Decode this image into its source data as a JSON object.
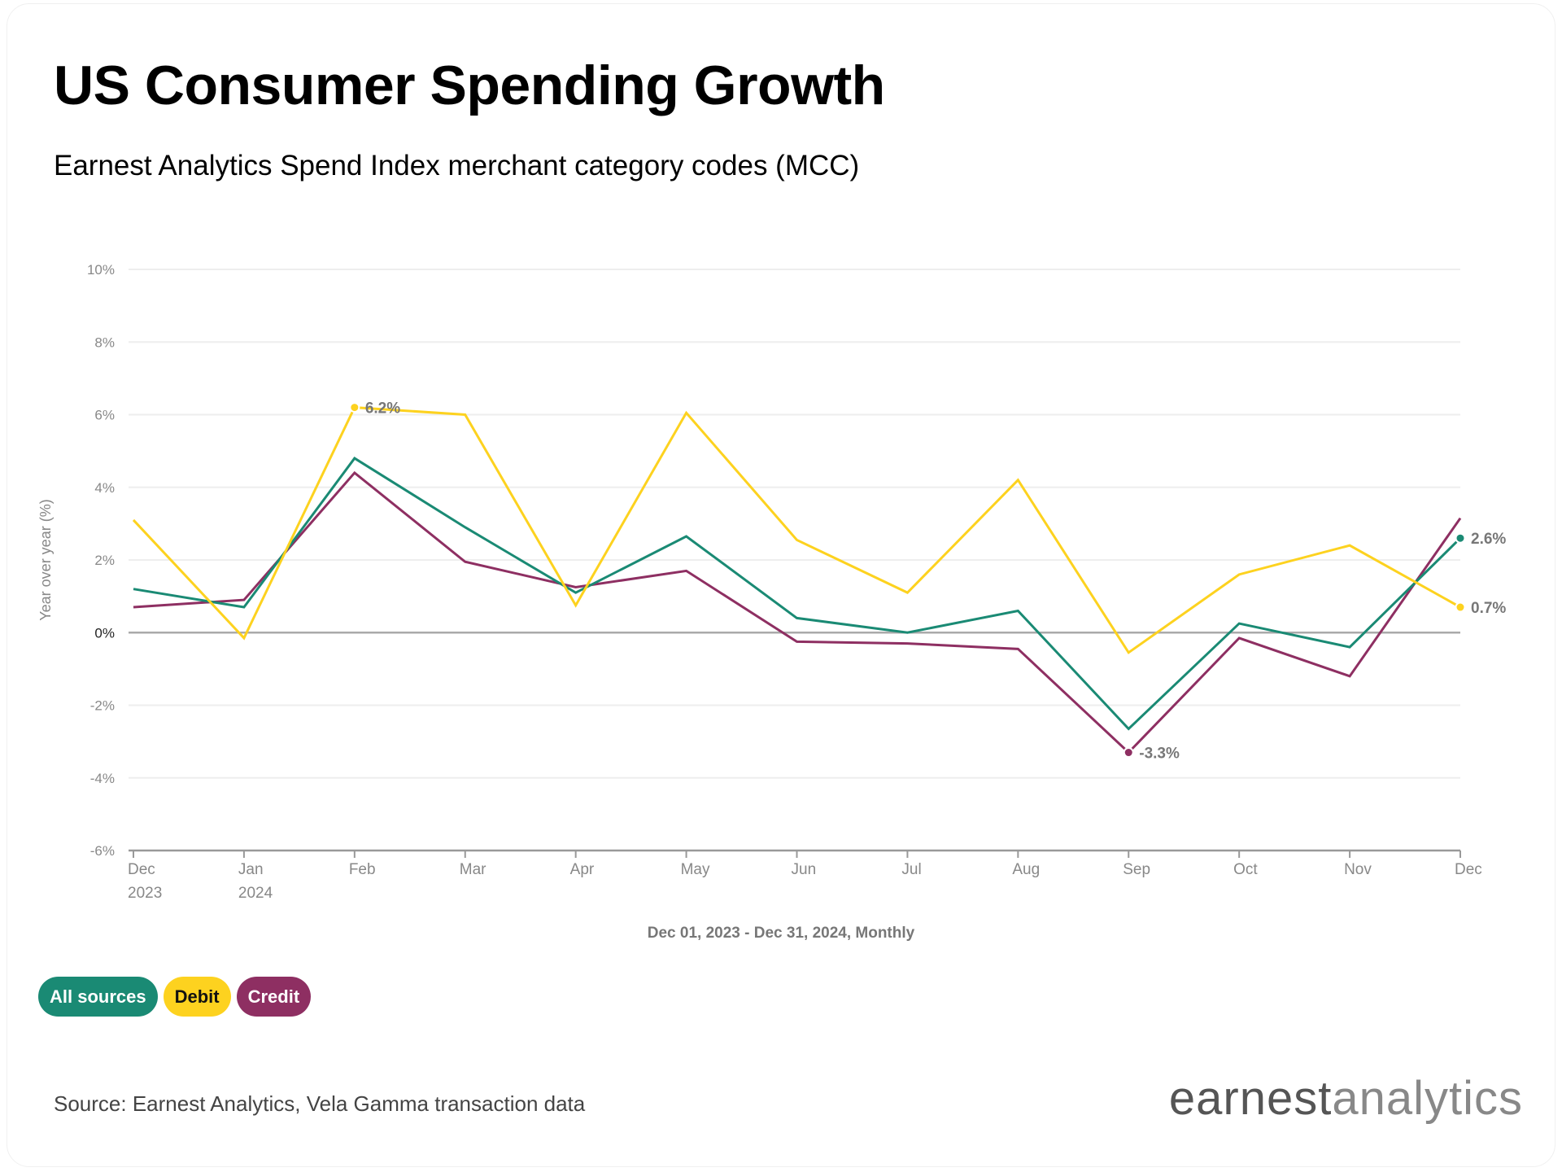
{
  "title": "US Consumer Spending Growth",
  "subtitle": "Earnest Analytics Spend Index merchant category codes (MCC)",
  "chart_data": {
    "type": "line",
    "title": "US Consumer Spending Growth",
    "ylabel": "Year over year (%)",
    "xlabel": "Dec 01, 2023 - Dec 31, 2024, Monthly",
    "ylim": [
      -6,
      10
    ],
    "yticks": [
      "10%",
      "8%",
      "6%",
      "4%",
      "2%",
      "0%",
      "-2%",
      "-4%",
      "-6%"
    ],
    "ytick_values": [
      10,
      8,
      6,
      4,
      2,
      0,
      -2,
      -4,
      -6
    ],
    "grid": true,
    "categories": [
      "Dec",
      "Jan",
      "Feb",
      "Mar",
      "Apr",
      "May",
      "Jun",
      "Jul",
      "Aug",
      "Sep",
      "Oct",
      "Nov",
      "Dec"
    ],
    "category_years": [
      "2023",
      "2024",
      "",
      "",
      "",
      "",
      "",
      "",
      "",
      "",
      "",
      "",
      ""
    ],
    "series": [
      {
        "name": "All sources",
        "color": "#1a8a74",
        "values": [
          1.2,
          0.7,
          4.8,
          2.9,
          1.1,
          2.65,
          0.4,
          0.0,
          0.6,
          -2.65,
          0.25,
          -0.4,
          2.6
        ]
      },
      {
        "name": "Debit",
        "color": "#fdd21f",
        "values": [
          3.1,
          -0.15,
          6.2,
          6.0,
          0.75,
          6.05,
          2.55,
          1.1,
          4.2,
          -0.55,
          1.6,
          2.4,
          0.7
        ]
      },
      {
        "name": "Credit",
        "color": "#8e2f62",
        "values": [
          0.7,
          0.9,
          4.4,
          1.95,
          1.25,
          1.7,
          -0.25,
          -0.3,
          -0.45,
          -3.3,
          -0.15,
          -1.2,
          3.15
        ]
      }
    ],
    "annotations": [
      {
        "series": 1,
        "index": 2,
        "text": "6.2%"
      },
      {
        "series": 2,
        "index": 9,
        "text": "-3.3%"
      },
      {
        "series": 0,
        "index": 12,
        "text": "2.6%"
      },
      {
        "series": 1,
        "index": 12,
        "text": "0.7%"
      }
    ],
    "legend": "bottom-left"
  },
  "legend": {
    "items": [
      "All sources",
      "Debit",
      "Credit"
    ],
    "text_colors": [
      "#ffffff",
      "#111111",
      "#ffffff"
    ]
  },
  "source": "Source: Earnest Analytics, Vela Gamma transaction data",
  "logo": {
    "part1": "earnest",
    "part2": "analytics"
  }
}
